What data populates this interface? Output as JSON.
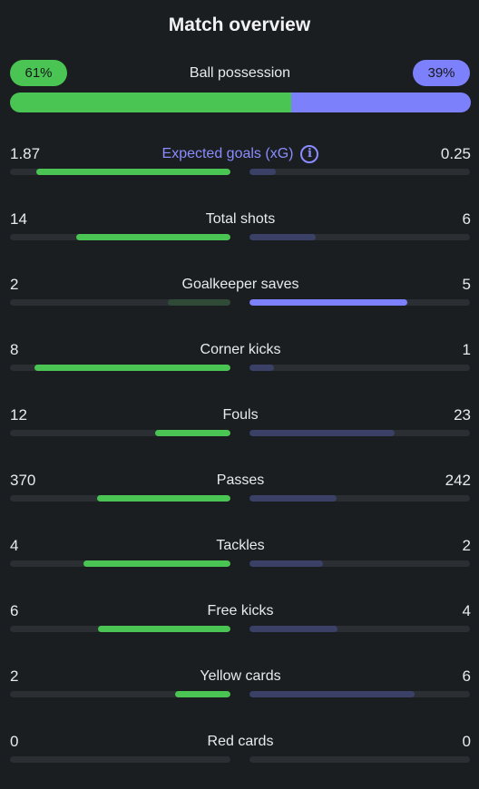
{
  "title": "Match overview",
  "colors": {
    "home": "#4ac453",
    "away": "#7d80fb",
    "home_muted": "#2f4a37",
    "away_muted": "#3a4066",
    "track": "#2b2f33",
    "xg_label": "#8a8cff"
  },
  "possession": {
    "label": "Ball possession",
    "home_text": "61%",
    "away_text": "39%",
    "home_pct": 61,
    "away_pct": 39
  },
  "stats": [
    {
      "label": "Expected goals (xG)",
      "home": "1.87",
      "away": "0.25",
      "home_share": 0.88,
      "away_share": 0.12,
      "home_style": "bright",
      "away_style": "muted",
      "info_icon": true,
      "highlight_label": true
    },
    {
      "label": "Total shots",
      "home": "14",
      "away": "6",
      "home_share": 0.7,
      "away_share": 0.3,
      "home_style": "bright",
      "away_style": "muted"
    },
    {
      "label": "Goalkeeper saves",
      "home": "2",
      "away": "5",
      "home_share": 0.285,
      "away_share": 0.715,
      "home_style": "muted",
      "away_style": "bright"
    },
    {
      "label": "Corner kicks",
      "home": "8",
      "away": "1",
      "home_share": 0.89,
      "away_share": 0.11,
      "home_style": "bright",
      "away_style": "muted"
    },
    {
      "label": "Fouls",
      "home": "12",
      "away": "23",
      "home_share": 0.34,
      "away_share": 0.66,
      "home_style": "bright",
      "away_style": "muted"
    },
    {
      "label": "Passes",
      "home": "370",
      "away": "242",
      "home_share": 0.605,
      "away_share": 0.395,
      "home_style": "bright",
      "away_style": "muted"
    },
    {
      "label": "Tackles",
      "home": "4",
      "away": "2",
      "home_share": 0.667,
      "away_share": 0.333,
      "home_style": "bright",
      "away_style": "muted"
    },
    {
      "label": "Free kicks",
      "home": "6",
      "away": "4",
      "home_share": 0.6,
      "away_share": 0.4,
      "home_style": "bright",
      "away_style": "muted"
    },
    {
      "label": "Yellow cards",
      "home": "2",
      "away": "6",
      "home_share": 0.25,
      "away_share": 0.75,
      "home_style": "bright",
      "away_style": "muted"
    },
    {
      "label": "Red cards",
      "home": "0",
      "away": "0",
      "home_share": 0,
      "away_share": 0,
      "home_style": "bright",
      "away_style": "muted"
    }
  ]
}
